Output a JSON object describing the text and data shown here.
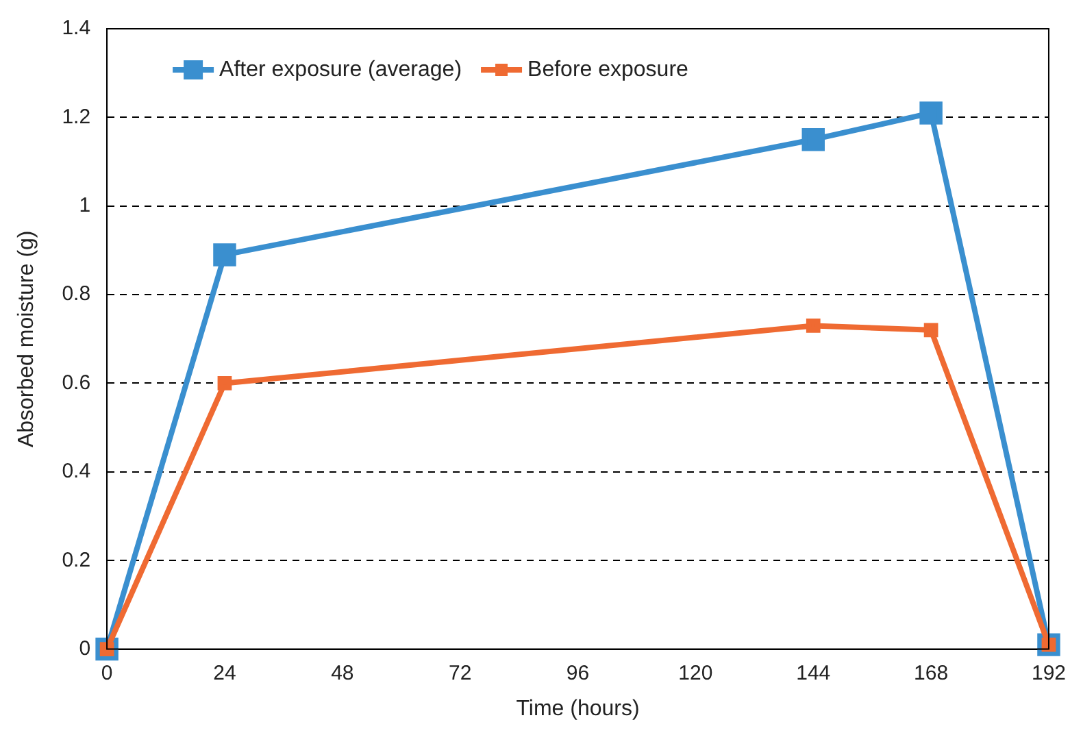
{
  "chart_data": {
    "type": "line",
    "xlabel": "Time (hours)",
    "ylabel": "Absorbed moisture (g)",
    "x": [
      0,
      24,
      144,
      168,
      192
    ],
    "series": [
      {
        "name": "After exposure (average)",
        "color": "#3a8fcf",
        "values": [
          0,
          0.89,
          1.15,
          1.21,
          0.01
        ]
      },
      {
        "name": "Before exposure",
        "color": "#ef6a32",
        "values": [
          0,
          0.6,
          0.73,
          0.72,
          0.01
        ]
      }
    ],
    "xlim": [
      0,
      192
    ],
    "xticks": [
      0,
      24,
      48,
      72,
      96,
      120,
      144,
      168,
      192
    ],
    "ylim": [
      0,
      1.4
    ],
    "yticks": [
      0,
      0.2,
      0.4,
      0.6,
      0.8,
      1,
      1.2,
      1.4
    ],
    "grid": "y",
    "legend": "top left",
    "marker": "square"
  }
}
